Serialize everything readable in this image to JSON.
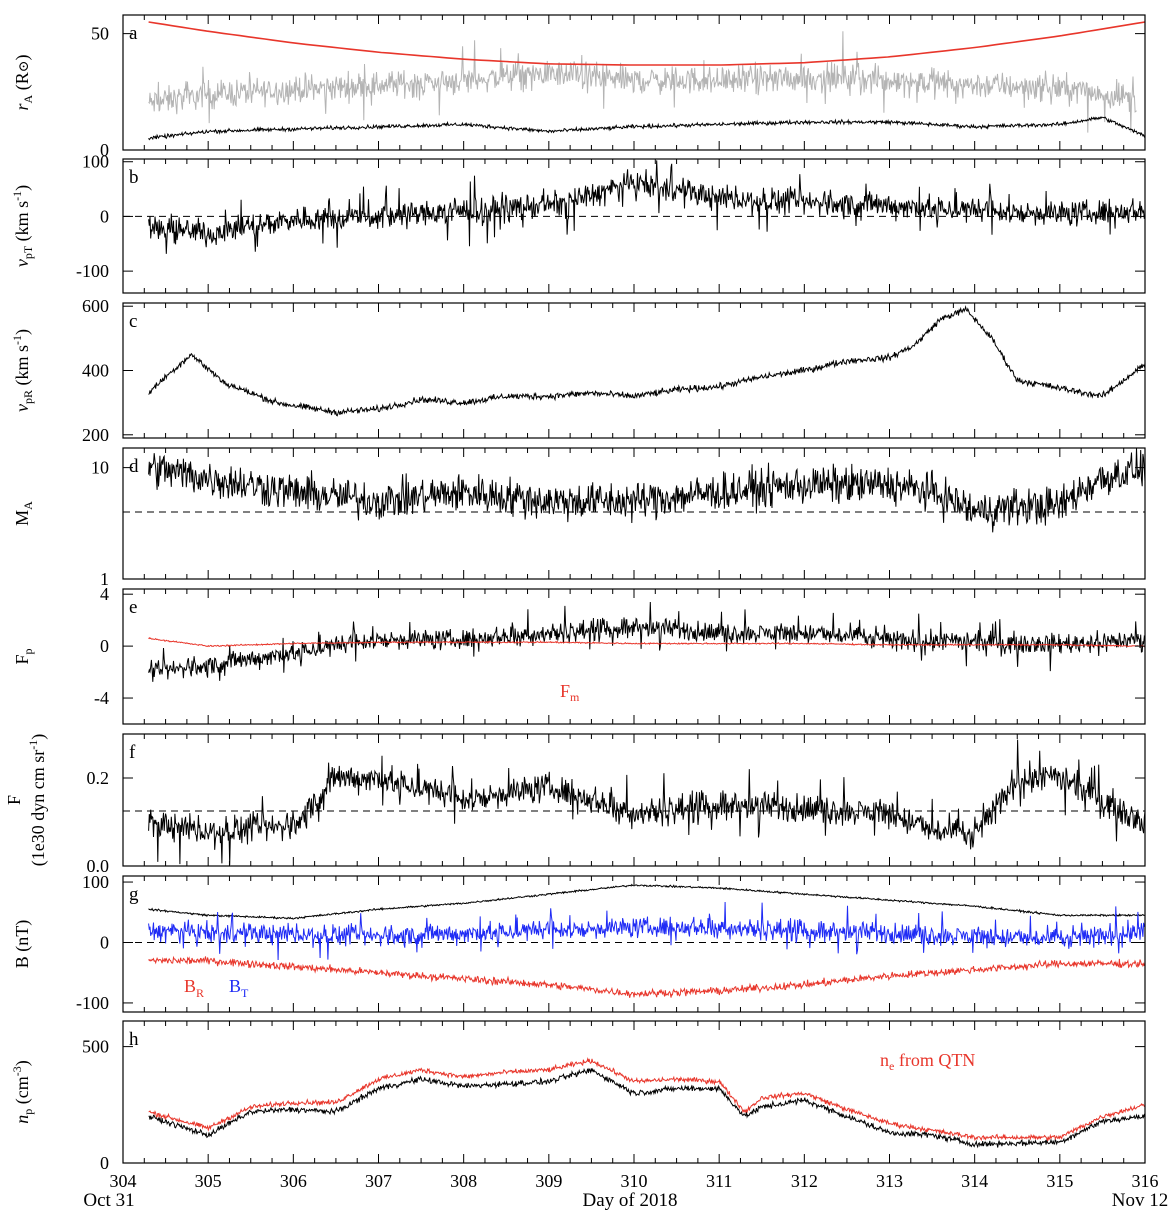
{
  "figure": {
    "xlabel": "Day of 2018",
    "date_start": "Oct 31",
    "date_end": "Nov 12"
  },
  "colors": {
    "black": "#000000",
    "gray": "#b4b4b4",
    "red": "#e8362b",
    "blue": "#1f2bf5"
  },
  "chart_data": [
    {
      "type": "line",
      "panel": "a",
      "ylabel": "r_A (R_sun)",
      "ylabel_main": "r",
      "ylabel_sub": "A",
      "ylabel_unit": "(R",
      "ylabel_sun": "⊙",
      "ylabel_close": ")",
      "ylim": [
        0,
        58
      ],
      "xlim": [
        304,
        316
      ],
      "yticks": [
        0,
        50
      ],
      "yticklabels": [
        "0",
        "50"
      ],
      "xticklabels": [
        "304",
        "305",
        "306",
        "307",
        "308",
        "309",
        "310",
        "311",
        "312",
        "313",
        "314",
        "315",
        "316"
      ],
      "series": [
        {
          "color": "gray",
          "x": [
            304.3,
            305,
            306,
            307,
            308,
            309,
            310,
            311,
            312,
            313,
            314,
            315,
            315.9
          ],
          "values": [
            20,
            24,
            26,
            28,
            30,
            33,
            30,
            30,
            31,
            30,
            28,
            27,
            22
          ]
        },
        {
          "color": "black",
          "x": [
            304.3,
            305,
            306,
            307,
            308,
            309,
            310,
            311,
            312,
            313,
            314,
            315,
            315.5,
            316
          ],
          "values": [
            5,
            8,
            9,
            10,
            11,
            8,
            10,
            11,
            12,
            12,
            10,
            11,
            14,
            6
          ]
        },
        {
          "color": "red",
          "x": [
            304.3,
            305,
            306,
            307,
            308,
            309,
            310,
            311,
            312,
            313,
            314,
            315,
            316
          ],
          "values": [
            55,
            51,
            46,
            42,
            39,
            37,
            36.5,
            36.5,
            37.5,
            40,
            44,
            49,
            55
          ]
        }
      ]
    },
    {
      "type": "line",
      "panel": "b",
      "ylabel": "v_pT (km s^-1)",
      "ylim": [
        -140,
        105
      ],
      "xlim": [
        304,
        316
      ],
      "yticks": [
        -100,
        0,
        100
      ],
      "yticklabels": [
        "-100",
        "0",
        "100"
      ],
      "dashed_y": 0,
      "series": [
        {
          "color": "black",
          "x": [
            304.3,
            305,
            306,
            307,
            308,
            309,
            310,
            311,
            312,
            313,
            314,
            315,
            316
          ],
          "values": [
            -20,
            -30,
            -5,
            0,
            10,
            20,
            60,
            35,
            25,
            20,
            10,
            5,
            10
          ]
        }
      ]
    },
    {
      "type": "line",
      "panel": "c",
      "ylabel": "v_pR (km s^-1)",
      "ylim": [
        190,
        610
      ],
      "xlim": [
        304,
        316
      ],
      "yticks": [
        200,
        400,
        600
      ],
      "yticklabels": [
        "200",
        "400",
        "600"
      ],
      "series": [
        {
          "color": "black",
          "x": [
            304.3,
            304.5,
            304.8,
            305.2,
            305.8,
            306.5,
            307,
            307.5,
            308,
            308.5,
            309,
            309.5,
            310,
            310.5,
            311,
            311.5,
            312,
            312.5,
            313,
            313.3,
            313.6,
            313.9,
            314.2,
            314.5,
            315,
            315.5,
            316
          ],
          "values": [
            330,
            380,
            450,
            360,
            300,
            270,
            280,
            310,
            300,
            320,
            320,
            330,
            320,
            340,
            350,
            380,
            400,
            430,
            440,
            480,
            560,
            590,
            500,
            370,
            345,
            320,
            420
          ]
        }
      ]
    },
    {
      "type": "line",
      "panel": "d",
      "ylabel": "M_A",
      "scale": "log",
      "ylim": [
        1,
        15
      ],
      "xlim": [
        304,
        316
      ],
      "yticks": [
        1,
        10
      ],
      "yticklabels": [
        "1",
        "10"
      ],
      "dashed_y": 4,
      "series": [
        {
          "color": "black",
          "x": [
            304.3,
            305,
            306,
            307,
            308,
            309,
            310,
            311,
            312,
            313,
            313.5,
            314,
            314.5,
            315,
            315.5,
            316
          ],
          "values": [
            10,
            8,
            6,
            5,
            6,
            5,
            5,
            6,
            7,
            7,
            6,
            4,
            4.5,
            4.5,
            8,
            10
          ]
        }
      ]
    },
    {
      "type": "line",
      "panel": "e",
      "ylabel": "F_p",
      "ylim": [
        -6,
        4.4
      ],
      "xlim": [
        304,
        316
      ],
      "yticks": [
        -4,
        0,
        4
      ],
      "yticklabels": [
        "-4",
        "0",
        "4"
      ],
      "annotation": "F",
      "annotation_sub": "m",
      "series": [
        {
          "color": "black",
          "x": [
            304.3,
            305,
            306,
            307,
            308,
            309,
            310,
            311,
            312,
            313,
            314,
            315,
            316
          ],
          "values": [
            -2,
            -1.5,
            -0.5,
            0.5,
            0.5,
            1,
            1.5,
            1,
            1,
            0.5,
            0.3,
            0.2,
            0.5
          ]
        },
        {
          "color": "red",
          "x": [
            304.3,
            305,
            306,
            307,
            308,
            309,
            310,
            311,
            312,
            313,
            314,
            315,
            316
          ],
          "values": [
            0.6,
            0,
            0.2,
            0.3,
            0.3,
            0.3,
            0.2,
            0.2,
            0.2,
            0.1,
            0.1,
            0.1,
            0
          ]
        }
      ]
    },
    {
      "type": "line",
      "panel": "f",
      "ylabel": "F (1e30 dyn cm sr^-1)",
      "ylabel_line1": "F",
      "ylabel_line2": "(1e30 dyn cm sr",
      "ylim": [
        0,
        0.3
      ],
      "xlim": [
        304,
        316
      ],
      "yticks": [
        0,
        0.2
      ],
      "yticklabels": [
        "0.0",
        "0.2"
      ],
      "dashed_y": 0.125,
      "series": [
        {
          "color": "black",
          "x": [
            304.3,
            305,
            306,
            306.5,
            307,
            308,
            309,
            310,
            311,
            312,
            313,
            313.5,
            314,
            314.5,
            315,
            316
          ],
          "values": [
            0.1,
            0.08,
            0.09,
            0.2,
            0.2,
            0.15,
            0.18,
            0.12,
            0.14,
            0.13,
            0.12,
            0.08,
            0.07,
            0.2,
            0.2,
            0.1
          ]
        }
      ]
    },
    {
      "type": "line",
      "panel": "g",
      "ylabel": "B (nT)",
      "ylim": [
        -115,
        110
      ],
      "xlim": [
        304,
        316
      ],
      "yticks": [
        -100,
        0,
        100
      ],
      "yticklabels": [
        "-100",
        "0",
        "100"
      ],
      "dashed_y": 0,
      "legend": [
        {
          "label": "B",
          "sub": "R",
          "color": "red"
        },
        {
          "label": "B",
          "sub": "T",
          "color": "blue"
        }
      ],
      "series": [
        {
          "color": "black",
          "x": [
            304.3,
            305,
            306,
            307,
            308,
            309,
            310,
            311,
            312,
            313,
            314,
            315,
            316
          ],
          "values": [
            55,
            45,
            40,
            55,
            65,
            80,
            95,
            90,
            80,
            70,
            60,
            45,
            45
          ]
        },
        {
          "color": "blue",
          "x": [
            304.3,
            305,
            306,
            307,
            308,
            309,
            310,
            311,
            312,
            313,
            314,
            315,
            316
          ],
          "values": [
            20,
            15,
            15,
            10,
            15,
            20,
            25,
            25,
            20,
            15,
            10,
            5,
            20
          ]
        },
        {
          "color": "red",
          "x": [
            304.3,
            305,
            306,
            307,
            308,
            309,
            310,
            311,
            312,
            313,
            314,
            315,
            316
          ],
          "values": [
            -30,
            -30,
            -40,
            -50,
            -60,
            -70,
            -85,
            -80,
            -70,
            -55,
            -45,
            -35,
            -35
          ]
        }
      ]
    },
    {
      "type": "line",
      "panel": "h",
      "ylabel": "n_p (cm^-3)",
      "ylim": [
        0,
        610
      ],
      "xlim": [
        304,
        316
      ],
      "yticks": [
        0,
        500
      ],
      "yticklabels": [
        "0",
        "500"
      ],
      "annotation": "n",
      "annotation_sub": "e",
      "annotation_rest": " from QTN",
      "series": [
        {
          "color": "black",
          "x": [
            304.3,
            305,
            305.5,
            306,
            306.5,
            307,
            307.5,
            308,
            308.5,
            309,
            309.5,
            310,
            310.5,
            311,
            311.3,
            311.5,
            312,
            312.5,
            313,
            313.5,
            314,
            315,
            315.5,
            316
          ],
          "values": [
            200,
            120,
            220,
            230,
            220,
            320,
            360,
            330,
            340,
            350,
            400,
            300,
            320,
            320,
            200,
            240,
            270,
            200,
            130,
            120,
            80,
            90,
            180,
            200
          ]
        },
        {
          "color": "red",
          "x": [
            304.3,
            305,
            305.5,
            306,
            306.5,
            307,
            307.5,
            308,
            308.5,
            309,
            309.5,
            310,
            310.5,
            311,
            311.3,
            311.5,
            312,
            312.5,
            313,
            313.5,
            314,
            315,
            315.5,
            316
          ],
          "values": [
            220,
            150,
            240,
            260,
            260,
            360,
            400,
            370,
            390,
            400,
            440,
            350,
            360,
            350,
            220,
            280,
            300,
            230,
            170,
            140,
            110,
            110,
            200,
            250
          ]
        }
      ]
    }
  ]
}
